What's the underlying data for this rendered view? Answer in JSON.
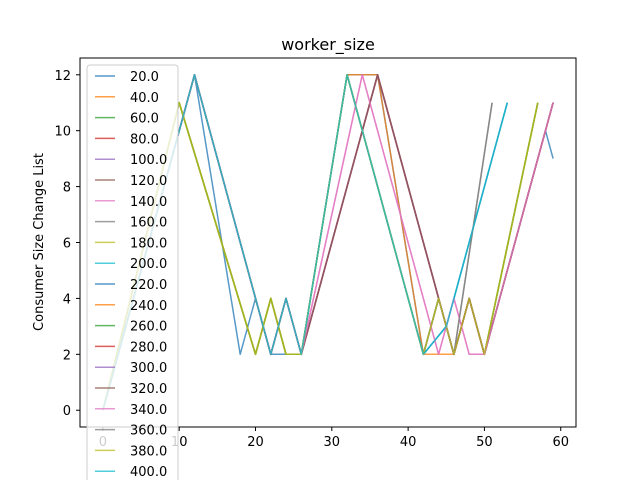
{
  "chart_data": {
    "type": "line",
    "title": "worker_size",
    "xlabel": "",
    "ylabel": "Consumer Size Change List",
    "xlim": [
      -3,
      62
    ],
    "ylim": [
      -0.6,
      12.6
    ],
    "xticks": [
      0,
      10,
      20,
      30,
      40,
      50,
      60
    ],
    "yticks": [
      0,
      2,
      4,
      6,
      8,
      10,
      12
    ],
    "grid": false,
    "legend_position": "upper-left",
    "series": [
      {
        "name": "20.0",
        "color": "#1f77b4",
        "x": [
          0,
          12,
          18,
          20,
          22,
          26,
          32,
          36,
          42,
          44,
          46,
          48,
          50,
          58,
          59
        ],
        "y": [
          0,
          12,
          2,
          4,
          2,
          2,
          12,
          12,
          2,
          4,
          2,
          4,
          2,
          10,
          9
        ]
      },
      {
        "name": "40.0",
        "color": "#ff7f0e",
        "x": [
          0,
          10,
          20,
          22,
          24,
          26,
          32,
          36,
          42,
          46,
          48,
          50,
          59
        ],
        "y": [
          0,
          11,
          2,
          4,
          2,
          2,
          12,
          12,
          2,
          2,
          4,
          2,
          11
        ]
      },
      {
        "name": "60.0",
        "color": "#2ca02c",
        "x": [
          0,
          10,
          20,
          22,
          24,
          26,
          32,
          42,
          44,
          46,
          48,
          50,
          57
        ],
        "y": [
          0,
          11,
          2,
          4,
          2,
          2,
          12,
          2,
          4,
          2,
          4,
          2,
          11
        ]
      },
      {
        "name": "80.0",
        "color": "#d62728",
        "x": [
          0,
          12,
          22,
          24,
          26,
          36,
          46,
          48,
          50,
          59
        ],
        "y": [
          0,
          12,
          2,
          4,
          2,
          12,
          2,
          4,
          2,
          11
        ]
      },
      {
        "name": "100.0",
        "color": "#9467bd",
        "x": [
          0,
          12,
          22,
          24,
          26,
          36,
          46,
          48,
          50,
          59
        ],
        "y": [
          0,
          12,
          2,
          4,
          2,
          12,
          2,
          4,
          2,
          11
        ]
      },
      {
        "name": "120.0",
        "color": "#8c564b",
        "x": [
          0,
          12,
          22,
          24,
          26,
          36,
          46,
          48,
          50,
          59
        ],
        "y": [
          0,
          12,
          2,
          4,
          2,
          12,
          2,
          4,
          2,
          11
        ]
      },
      {
        "name": "140.0",
        "color": "#e377c2",
        "x": [
          0,
          12,
          22,
          24,
          26,
          34,
          44,
          46,
          48,
          50,
          59
        ],
        "y": [
          0,
          12,
          2,
          4,
          2,
          12,
          2,
          4,
          2,
          2,
          11
        ]
      },
      {
        "name": "160.0",
        "color": "#7f7f7f",
        "x": [
          0,
          12,
          22,
          24,
          26,
          32,
          42,
          44,
          46,
          51
        ],
        "y": [
          0,
          12,
          2,
          4,
          2,
          12,
          2,
          4,
          2,
          11
        ]
      },
      {
        "name": "180.0",
        "color": "#bcbd22",
        "x": [
          0,
          10,
          20,
          22,
          24,
          26,
          32,
          42,
          44,
          46,
          48,
          50,
          57
        ],
        "y": [
          0,
          11,
          2,
          4,
          2,
          2,
          12,
          2,
          4,
          2,
          4,
          2,
          11
        ]
      },
      {
        "name": "200.0",
        "color": "#17becf",
        "x": [
          0,
          12,
          22,
          24,
          26,
          32,
          42,
          45,
          53
        ],
        "y": [
          0,
          12,
          2,
          4,
          2,
          12,
          2,
          3,
          11
        ]
      },
      {
        "name": "220.0",
        "color": "#1f77b4",
        "x": [
          0,
          12,
          22,
          24,
          26,
          32,
          42,
          45,
          53
        ],
        "y": [
          0,
          12,
          2,
          4,
          2,
          12,
          2,
          3,
          11
        ]
      },
      {
        "name": "240.0",
        "color": "#ff7f0e",
        "x": [
          0,
          10,
          20,
          22,
          24,
          26,
          32,
          42,
          44,
          46,
          48,
          50,
          57
        ],
        "y": [
          0,
          11,
          2,
          4,
          2,
          2,
          12,
          2,
          4,
          2,
          4,
          2,
          11
        ]
      },
      {
        "name": "260.0",
        "color": "#2ca02c",
        "x": [
          0,
          10,
          20,
          22,
          24,
          26,
          32,
          42,
          44,
          46,
          48,
          50,
          57
        ],
        "y": [
          0,
          11,
          2,
          4,
          2,
          2,
          12,
          2,
          4,
          2,
          4,
          2,
          11
        ]
      },
      {
        "name": "280.0",
        "color": "#d62728",
        "x": [
          0,
          12,
          22,
          24,
          26,
          36,
          46,
          48,
          50,
          59
        ],
        "y": [
          0,
          12,
          2,
          4,
          2,
          12,
          2,
          4,
          2,
          11
        ]
      },
      {
        "name": "300.0",
        "color": "#9467bd",
        "x": [
          0,
          12,
          22,
          24,
          26,
          36,
          46,
          48,
          50,
          59
        ],
        "y": [
          0,
          12,
          2,
          4,
          2,
          12,
          2,
          4,
          2,
          11
        ]
      },
      {
        "name": "320.0",
        "color": "#8c564b",
        "x": [
          0,
          12,
          22,
          24,
          26,
          36,
          46,
          48,
          50,
          59
        ],
        "y": [
          0,
          12,
          2,
          4,
          2,
          12,
          2,
          4,
          2,
          11
        ]
      },
      {
        "name": "340.0",
        "color": "#e377c2",
        "x": [
          0,
          12,
          22,
          24,
          26,
          34,
          44,
          46,
          48,
          50,
          59
        ],
        "y": [
          0,
          12,
          2,
          4,
          2,
          12,
          2,
          4,
          2,
          2,
          11
        ]
      },
      {
        "name": "360.0",
        "color": "#7f7f7f",
        "x": [
          0,
          12,
          22,
          24,
          26,
          32,
          42,
          44,
          46,
          51
        ],
        "y": [
          0,
          12,
          2,
          4,
          2,
          12,
          2,
          4,
          2,
          11
        ]
      },
      {
        "name": "380.0",
        "color": "#bcbd22",
        "x": [
          0,
          10,
          20,
          22,
          24,
          26,
          32,
          42,
          44,
          46,
          48,
          50,
          57
        ],
        "y": [
          0,
          11,
          2,
          4,
          2,
          2,
          12,
          2,
          4,
          2,
          4,
          2,
          11
        ]
      },
      {
        "name": "400.0",
        "color": "#17becf",
        "x": [
          0,
          12,
          22,
          24,
          26,
          32,
          42,
          45,
          53
        ],
        "y": [
          0,
          12,
          2,
          4,
          2,
          12,
          2,
          3,
          11
        ]
      }
    ]
  }
}
